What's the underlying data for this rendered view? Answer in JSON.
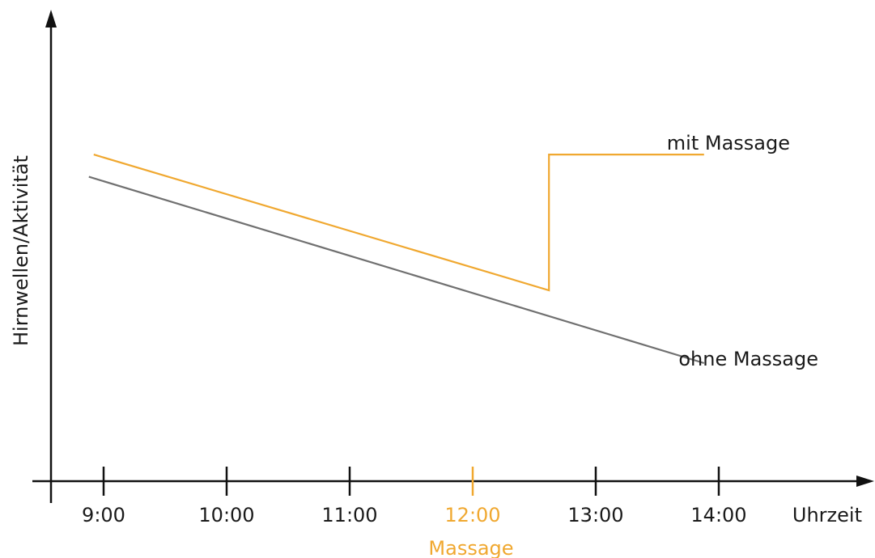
{
  "chart_data": {
    "type": "line",
    "title": "",
    "xlabel": "Uhrzeit",
    "ylabel": "Hirnwellen/Aktivität",
    "x_ticks": [
      "9:00",
      "10:00",
      "11:00",
      "12:00",
      "13:00",
      "14:00"
    ],
    "xlim": [
      8.6,
      15.2
    ],
    "ylim": [
      0,
      100
    ],
    "highlight": {
      "tick": "12:00",
      "label": "Massage",
      "color": "#f0a830"
    },
    "series": [
      {
        "name": "mit Massage",
        "color": "#f0a830",
        "points": [
          {
            "x": 8.92,
            "y": 69.6
          },
          {
            "x": 12.62,
            "y": 37.3
          },
          {
            "x": 12.62,
            "y": 69.6
          },
          {
            "x": 13.88,
            "y": 69.6
          }
        ]
      },
      {
        "name": "ohne Massage",
        "color": "#707070",
        "points": [
          {
            "x": 8.88,
            "y": 64.3
          },
          {
            "x": 13.88,
            "y": 20.0
          }
        ]
      }
    ],
    "grid": false,
    "legend": "inline-labels"
  }
}
